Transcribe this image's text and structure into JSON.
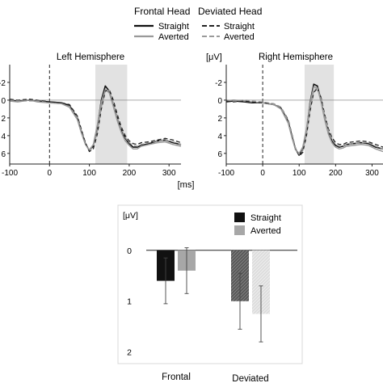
{
  "legend": {
    "groups": [
      {
        "title": "Frontal Head",
        "entries": [
          "Straight",
          "Averted"
        ]
      },
      {
        "title": "Deviated Head",
        "entries": [
          "Straight",
          "Averted"
        ]
      }
    ]
  },
  "chart_data": [
    {
      "type": "line",
      "title": "Left Hemisphere",
      "ylabel": "",
      "xlabel": "[ms]",
      "xlim": [
        -100,
        330
      ],
      "ylim": [
        -4,
        7.2
      ],
      "y_inverted": true,
      "xticks": [
        "-100",
        "0",
        "100",
        "200",
        "300"
      ],
      "yticks": [
        "-2",
        "0",
        "2",
        "4",
        "6"
      ],
      "shaded_interval": [
        115,
        195
      ],
      "series": [
        {
          "name": "Frontal Straight",
          "x": [
            -100,
            -80,
            -50,
            -30,
            0,
            30,
            50,
            70,
            80,
            90,
            100,
            110,
            120,
            130,
            140,
            150,
            160,
            170,
            180,
            190,
            200,
            210,
            220,
            230,
            250,
            270,
            290,
            310,
            330
          ],
          "y": [
            0.0,
            0.1,
            0.0,
            0.1,
            0.2,
            0.3,
            0.6,
            2.0,
            3.5,
            4.9,
            5.7,
            5.2,
            3.0,
            0.0,
            -1.6,
            -1.0,
            0.5,
            2.0,
            3.3,
            4.3,
            4.9,
            5.3,
            5.3,
            5.1,
            4.9,
            4.6,
            4.5,
            4.8,
            5.0
          ]
        },
        {
          "name": "Frontal Averted",
          "x": [
            -100,
            -80,
            -50,
            -30,
            0,
            30,
            50,
            70,
            80,
            90,
            100,
            110,
            120,
            130,
            140,
            150,
            160,
            170,
            180,
            190,
            200,
            210,
            220,
            230,
            250,
            270,
            290,
            310,
            330
          ],
          "y": [
            0.1,
            0.2,
            0.0,
            0.2,
            0.3,
            0.4,
            0.8,
            2.2,
            3.7,
            5.0,
            5.6,
            5.0,
            2.8,
            0.2,
            -1.2,
            -0.8,
            0.7,
            2.3,
            3.6,
            4.6,
            5.1,
            5.5,
            5.5,
            5.2,
            5.0,
            4.8,
            4.7,
            5.0,
            5.2
          ]
        },
        {
          "name": "Deviated Straight",
          "x": [
            -100,
            -80,
            -50,
            -30,
            0,
            30,
            50,
            70,
            80,
            90,
            100,
            110,
            120,
            130,
            140,
            150,
            160,
            170,
            180,
            190,
            200,
            210,
            220,
            230,
            250,
            270,
            290,
            310,
            330
          ],
          "y": [
            -0.1,
            0.0,
            -0.1,
            0.0,
            0.2,
            0.3,
            0.5,
            1.8,
            3.3,
            4.8,
            5.8,
            5.5,
            3.8,
            1.0,
            -1.0,
            -1.2,
            0.0,
            1.6,
            3.0,
            4.0,
            4.6,
            4.9,
            5.0,
            4.8,
            4.7,
            4.5,
            4.3,
            4.5,
            4.8
          ]
        },
        {
          "name": "Deviated Averted",
          "x": [
            -100,
            -80,
            -50,
            -30,
            0,
            30,
            50,
            70,
            80,
            90,
            100,
            110,
            120,
            130,
            140,
            150,
            160,
            170,
            180,
            190,
            200,
            210,
            220,
            230,
            250,
            270,
            290,
            310,
            330
          ],
          "y": [
            0.0,
            0.1,
            0.1,
            0.1,
            0.3,
            0.4,
            0.7,
            2.0,
            3.5,
            5.0,
            5.7,
            5.3,
            3.5,
            0.8,
            -1.1,
            -1.1,
            0.3,
            1.9,
            3.2,
            4.2,
            4.8,
            5.1,
            5.2,
            5.0,
            4.8,
            4.6,
            4.5,
            4.7,
            5.0
          ]
        }
      ]
    },
    {
      "type": "line",
      "title": "Right Hemisphere",
      "ylabel": "[μV]",
      "xlabel": "",
      "xlim": [
        -100,
        330
      ],
      "ylim": [
        -4,
        7.2
      ],
      "y_inverted": true,
      "xticks": [
        "-100",
        "0",
        "100",
        "200",
        "300"
      ],
      "yticks": [
        "-2",
        "0",
        "2",
        "4",
        "6"
      ],
      "shaded_interval": [
        115,
        195
      ],
      "series": [
        {
          "name": "Frontal Straight",
          "x": [
            -100,
            -80,
            -50,
            -30,
            0,
            30,
            50,
            70,
            80,
            90,
            100,
            110,
            120,
            130,
            140,
            150,
            160,
            170,
            180,
            190,
            200,
            210,
            220,
            230,
            250,
            270,
            290,
            310,
            330
          ],
          "y": [
            0.2,
            0.1,
            0.2,
            0.3,
            0.3,
            0.5,
            0.9,
            2.4,
            4.0,
            5.5,
            6.2,
            5.6,
            3.5,
            0.2,
            -1.8,
            -1.6,
            0.0,
            2.0,
            3.6,
            4.6,
            5.1,
            5.3,
            5.2,
            5.0,
            4.9,
            4.8,
            4.9,
            5.3,
            5.5
          ]
        },
        {
          "name": "Frontal Averted",
          "x": [
            -100,
            -80,
            -50,
            -30,
            0,
            30,
            50,
            70,
            80,
            90,
            100,
            110,
            120,
            130,
            140,
            150,
            160,
            170,
            180,
            190,
            200,
            210,
            220,
            230,
            250,
            270,
            290,
            310,
            330
          ],
          "y": [
            0.1,
            0.0,
            0.1,
            0.2,
            0.3,
            0.5,
            1.0,
            2.6,
            4.2,
            5.6,
            6.0,
            5.3,
            3.2,
            0.3,
            -1.5,
            -1.4,
            0.2,
            2.2,
            3.8,
            4.8,
            5.3,
            5.5,
            5.4,
            5.2,
            5.1,
            5.0,
            5.1,
            5.5,
            5.8
          ]
        },
        {
          "name": "Deviated Straight",
          "x": [
            -100,
            -80,
            -50,
            -30,
            0,
            30,
            50,
            70,
            80,
            90,
            100,
            110,
            120,
            130,
            140,
            150,
            160,
            170,
            180,
            190,
            200,
            210,
            220,
            230,
            250,
            270,
            290,
            310,
            330
          ],
          "y": [
            0.1,
            0.2,
            0.1,
            0.2,
            0.3,
            0.4,
            0.8,
            2.2,
            3.8,
            5.4,
            6.3,
            5.9,
            4.0,
            1.2,
            -0.9,
            -1.3,
            -0.3,
            1.6,
            3.2,
            4.2,
            4.8,
            5.0,
            5.0,
            4.8,
            4.7,
            4.6,
            4.7,
            5.0,
            5.3
          ]
        },
        {
          "name": "Deviated Averted",
          "x": [
            -100,
            -80,
            -50,
            -30,
            0,
            30,
            50,
            70,
            80,
            90,
            100,
            110,
            120,
            130,
            140,
            150,
            160,
            170,
            180,
            190,
            200,
            210,
            220,
            230,
            250,
            270,
            290,
            310,
            330
          ],
          "y": [
            0.0,
            0.1,
            0.0,
            0.1,
            0.2,
            0.4,
            0.8,
            2.3,
            3.9,
            5.4,
            6.1,
            5.7,
            3.8,
            1.0,
            -1.1,
            -1.4,
            -0.1,
            1.8,
            3.4,
            4.4,
            5.0,
            5.2,
            5.2,
            5.0,
            4.9,
            4.8,
            4.8,
            5.2,
            5.5
          ]
        }
      ]
    },
    {
      "type": "bar",
      "ylabel": "[μV]",
      "ylim": [
        -0.6,
        2.1
      ],
      "y_inverted": true,
      "yticks": [
        "0",
        "1",
        "2"
      ],
      "categories": [
        "Frontal",
        "Deviated"
      ],
      "legend_entries": [
        "Straight",
        "Averted"
      ],
      "series": [
        {
          "name": "Straight",
          "values": [
            0.6,
            1.0
          ],
          "errors": [
            0.45,
            0.55
          ]
        },
        {
          "name": "Averted",
          "values": [
            0.4,
            1.25
          ],
          "errors": [
            0.45,
            0.55
          ]
        }
      ]
    }
  ],
  "colors": {
    "frontal_straight": "#111111",
    "frontal_averted": "#999999",
    "deviated_straight": "#222222",
    "deviated_averted": "#9a9a9a",
    "shade": "#e2e2e2",
    "bar_straight": "#111111",
    "bar_averted": "#a7a7a7",
    "bar_deviated_straight": "#575757",
    "bar_deviated_averted": "#dcdcdc"
  }
}
